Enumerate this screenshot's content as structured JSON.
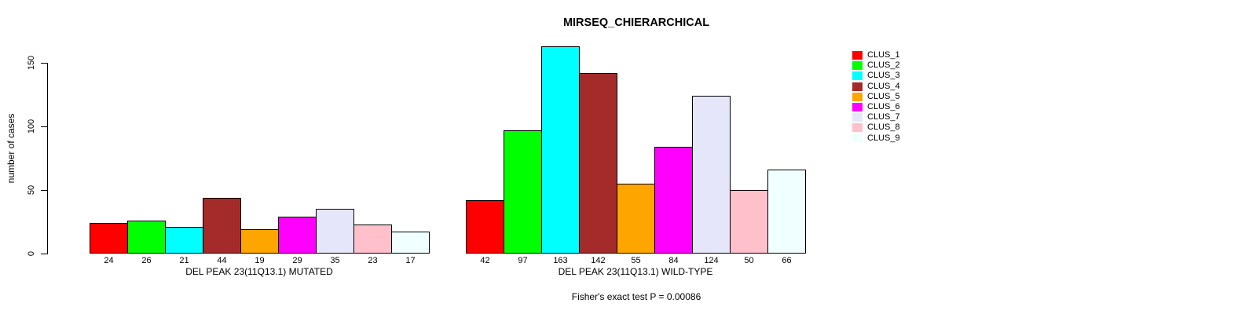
{
  "title": "MIRSEQ_CHIERARCHICAL",
  "y_axis": {
    "label": "number of cases",
    "ticks": [
      0,
      50,
      100,
      150
    ]
  },
  "legend": {
    "items": [
      {
        "label": "CLUS_1",
        "color": "#FF0000"
      },
      {
        "label": "CLUS_2",
        "color": "#00FF00"
      },
      {
        "label": "CLUS_3",
        "color": "#00FFFF"
      },
      {
        "label": "CLUS_4",
        "color": "#A52A2A"
      },
      {
        "label": "CLUS_5",
        "color": "#FFA500"
      },
      {
        "label": "CLUS_6",
        "color": "#FF00FF"
      },
      {
        "label": "CLUS_7",
        "color": "#E6E6FA"
      },
      {
        "label": "CLUS_8",
        "color": "#FFC0CB"
      },
      {
        "label": "CLUS_9",
        "color": "#F0FFFF"
      }
    ]
  },
  "chart_data": {
    "type": "bar",
    "title": "MIRSEQ_CHIERARCHICAL",
    "ylabel": "number of cases",
    "ylim": [
      0,
      163
    ],
    "yticks": [
      0,
      50,
      100,
      150
    ],
    "grid": false,
    "legend_position": "right",
    "categories": [
      "CLUS_1",
      "CLUS_2",
      "CLUS_3",
      "CLUS_4",
      "CLUS_5",
      "CLUS_6",
      "CLUS_7",
      "CLUS_8",
      "CLUS_9"
    ],
    "colors": [
      "#FF0000",
      "#00FF00",
      "#00FFFF",
      "#A52A2A",
      "#FFA500",
      "#FF00FF",
      "#E6E6FA",
      "#FFC0CB",
      "#F0FFFF"
    ],
    "series": [
      {
        "name": "DEL PEAK 23(11Q13.1) MUTATED",
        "values": [
          24,
          26,
          21,
          44,
          19,
          29,
          35,
          23,
          17
        ]
      },
      {
        "name": "DEL PEAK 23(11Q13.1) WILD-TYPE",
        "values": [
          42,
          97,
          163,
          142,
          55,
          84,
          124,
          50,
          66
        ]
      }
    ],
    "annotation": "Fisher's exact test P = 0.00086"
  }
}
